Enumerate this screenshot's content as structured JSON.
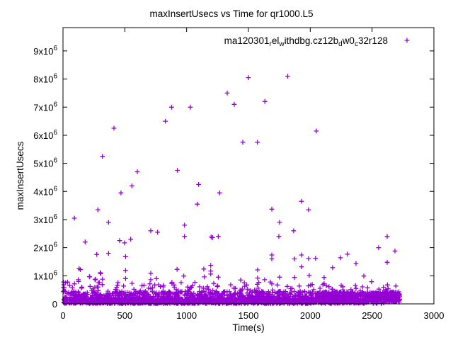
{
  "chart_data": {
    "type": "scatter",
    "title": "maxInsertUsecs vs Time for qr1000.L5",
    "xlabel": "Time(s)",
    "ylabel": "maxInsertUsecs",
    "xlim": [
      0,
      3000
    ],
    "ylim": [
      0,
      9830000
    ],
    "grid": false,
    "x_ticks": [
      {
        "v": 0,
        "label": "0"
      },
      {
        "v": 500,
        "label": "500"
      },
      {
        "v": 1000,
        "label": "1000"
      },
      {
        "v": 1500,
        "label": "1500"
      },
      {
        "v": 2000,
        "label": "2000"
      },
      {
        "v": 2500,
        "label": "2500"
      },
      {
        "v": 3000,
        "label": "3000"
      }
    ],
    "y_ticks": [
      {
        "v": 0,
        "m": "0",
        "e": ""
      },
      {
        "v": 1000000,
        "m": "1x10",
        "e": "6"
      },
      {
        "v": 2000000,
        "m": "2x10",
        "e": "6"
      },
      {
        "v": 3000000,
        "m": "3x10",
        "e": "6"
      },
      {
        "v": 4000000,
        "m": "4x10",
        "e": "6"
      },
      {
        "v": 5000000,
        "m": "5x10",
        "e": "6"
      },
      {
        "v": 6000000,
        "m": "6x10",
        "e": "6"
      },
      {
        "v": 7000000,
        "m": "7x10",
        "e": "6"
      },
      {
        "v": 8000000,
        "m": "8x10",
        "e": "6"
      },
      {
        "v": 9000000,
        "m": "9x10",
        "e": "6"
      }
    ],
    "legend": {
      "position": "top-right-inside",
      "label_flat": "ma120301_rel_withdbg.cz12b_dw0_c32r128",
      "rich": [
        {
          "t": "ma120301"
        },
        {
          "t": "r",
          "sub": true
        },
        {
          "t": "el"
        },
        {
          "t": "w",
          "sub": true
        },
        {
          "t": "ithdbg.cz12b"
        },
        {
          "t": "d",
          "sub": true
        },
        {
          "t": "w0"
        },
        {
          "t": "c",
          "sub": true
        },
        {
          "t": "32r128"
        }
      ],
      "marker": "plus"
    },
    "series": [
      {
        "name": "ma120301_rel_withdbg.cz12b_dw0_c32r128",
        "color": "#9400D3",
        "marker": "plus",
        "outlier_points": [
          [
            319,
            5250000
          ],
          [
            412,
            6250000
          ],
          [
            828,
            6500000
          ],
          [
            878,
            7000000
          ],
          [
            1030,
            7000000
          ],
          [
            1328,
            7500000
          ],
          [
            1385,
            7100000
          ],
          [
            1454,
            5750000
          ],
          [
            1500,
            8050000
          ],
          [
            1817,
            8100000
          ],
          [
            1633,
            7200000
          ],
          [
            2049,
            6150000
          ],
          [
            1572,
            5750000
          ],
          [
            601,
            4700000
          ],
          [
            926,
            4750000
          ],
          [
            557,
            4200000
          ],
          [
            469,
            3950000
          ],
          [
            1097,
            4250000
          ],
          [
            1267,
            3950000
          ],
          [
            282,
            3350000
          ],
          [
            92,
            3050000
          ],
          [
            368,
            2900000
          ],
          [
            1086,
            3550000
          ],
          [
            710,
            2600000
          ],
          [
            765,
            2550000
          ],
          [
            983,
            2800000
          ],
          [
            983,
            2400000
          ],
          [
            1198,
            2380000
          ],
          [
            1210,
            2360000
          ],
          [
            1256,
            2400000
          ],
          [
            179,
            2200000
          ],
          [
            458,
            2250000
          ],
          [
            498,
            2170000
          ],
          [
            548,
            2300000
          ],
          [
            273,
            1760000
          ],
          [
            368,
            1800000
          ],
          [
            506,
            1680000
          ],
          [
            130,
            1250000
          ],
          [
            140,
            1220000
          ],
          [
            302,
            1110000
          ],
          [
            214,
            970000
          ],
          [
            263,
            880000
          ],
          [
            506,
            1190000
          ],
          [
            506,
            900000
          ],
          [
            126,
            800000
          ],
          [
            710,
            1090000
          ],
          [
            710,
            860000
          ],
          [
            756,
            900000
          ],
          [
            923,
            1230000
          ],
          [
            977,
            990000
          ],
          [
            1139,
            1240000
          ],
          [
            1195,
            1370000
          ],
          [
            1195,
            1170000
          ],
          [
            1195,
            1060000
          ],
          [
            1143,
            960000
          ],
          [
            1256,
            950000
          ],
          [
            1437,
            850000
          ],
          [
            1929,
            3650000
          ],
          [
            1689,
            3370000
          ],
          [
            1986,
            3350000
          ],
          [
            1752,
            2900000
          ],
          [
            1866,
            2600000
          ],
          [
            1746,
            2400000
          ],
          [
            2622,
            2400000
          ],
          [
            2553,
            2000000
          ],
          [
            2685,
            1880000
          ],
          [
            2622,
            1480000
          ],
          [
            1689,
            1740000
          ],
          [
            1689,
            1600000
          ],
          [
            1929,
            1740000
          ],
          [
            1872,
            1600000
          ],
          [
            1986,
            1610000
          ],
          [
            2043,
            1620000
          ],
          [
            2301,
            1770000
          ],
          [
            2244,
            1640000
          ],
          [
            1929,
            1320000
          ],
          [
            2181,
            1290000
          ],
          [
            2370,
            1440000
          ],
          [
            1574,
            1210000
          ],
          [
            1574,
            920000
          ],
          [
            1631,
            860000
          ],
          [
            1752,
            950000
          ],
          [
            1689,
            710000
          ],
          [
            1872,
            940000
          ],
          [
            1992,
            1010000
          ],
          [
            2112,
            940000
          ],
          [
            2112,
            720000
          ],
          [
            2433,
            990000
          ],
          [
            2496,
            790000
          ],
          [
            4,
            780000
          ],
          [
            6,
            680000
          ],
          [
            3,
            580000
          ],
          [
            9,
            480000
          ],
          [
            21,
            750000
          ],
          [
            53,
            660000
          ],
          [
            124,
            860000
          ],
          [
            216,
            960000
          ],
          [
            259,
            860000
          ],
          [
            305,
            1080000
          ],
          [
            319,
            880000
          ],
          [
            219,
            620000
          ]
        ],
        "dense_band": {
          "seed": 20120301,
          "segments": [
            {
              "x0": 2,
              "x1": 2050,
              "count": 1500,
              "y0": 10000,
              "y1": 220000
            },
            {
              "x0": 2,
              "x1": 2050,
              "count": 430,
              "y0": 220000,
              "y1": 450000
            },
            {
              "x0": 2,
              "x1": 2050,
              "count": 85,
              "y0": 450000,
              "y1": 780000
            },
            {
              "x0": 2050,
              "x1": 2725,
              "count": 480,
              "y0": 120000,
              "y1": 430000
            },
            {
              "x0": 2050,
              "x1": 2450,
              "count": 110,
              "y0": 15000,
              "y1": 120000
            },
            {
              "x0": 2450,
              "x1": 2725,
              "count": 60,
              "y0": 60000,
              "y1": 160000
            },
            {
              "x0": 2050,
              "x1": 2725,
              "count": 22,
              "y0": 430000,
              "y1": 700000
            },
            {
              "x0": 2500,
              "x1": 2600,
              "count": 8,
              "y0": 0,
              "y1": 50000
            }
          ]
        }
      }
    ]
  }
}
